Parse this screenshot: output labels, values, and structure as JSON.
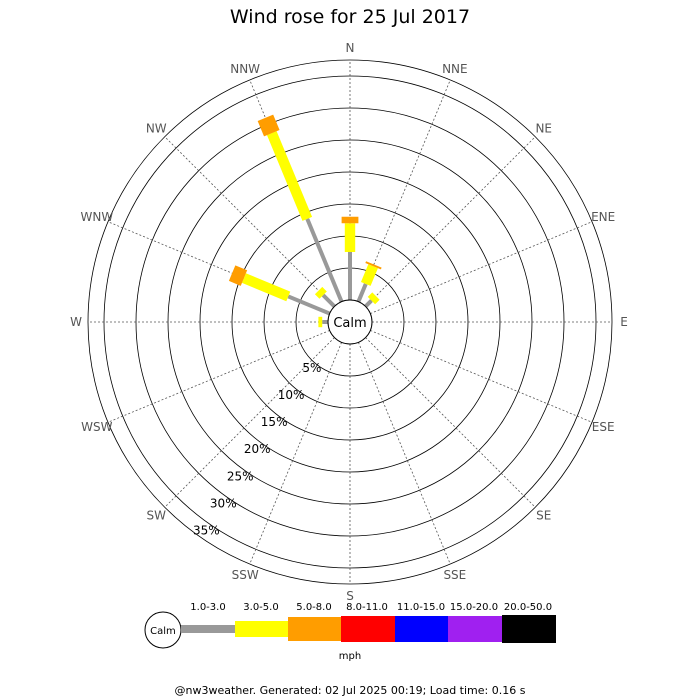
{
  "chart_data": {
    "type": "wind-rose",
    "title": "Wind rose for 25 Jul 2017",
    "directions": [
      "N",
      "NNE",
      "NE",
      "ENE",
      "E",
      "ESE",
      "SE",
      "SSE",
      "S",
      "SSW",
      "SW",
      "WSW",
      "W",
      "WNW",
      "NW",
      "NNW"
    ],
    "radial_ticks": [
      5,
      10,
      15,
      20,
      25,
      30,
      35
    ],
    "radial_tick_format": "{v}%",
    "rmax": 37.5,
    "calm_label": "Calm",
    "speed_bins": [
      {
        "label": "1.0-3.0",
        "color": "#999999"
      },
      {
        "label": "3.0-5.0",
        "color": "#ffff00"
      },
      {
        "label": "5.0-8.0",
        "color": "#ff9d00"
      },
      {
        "label": "8.0-11.0",
        "color": "#ff0000"
      },
      {
        "label": "11.0-15.0",
        "color": "#0000ff"
      },
      {
        "label": "15.0-20.0",
        "color": "#a020f0"
      },
      {
        "label": "20.0-50.0",
        "color": "#000000"
      }
    ],
    "unit": "mph",
    "series": [
      {
        "direction": "N",
        "values": [
          7.5,
          4.5,
          1.0,
          0,
          0,
          0,
          0
        ]
      },
      {
        "direction": "NNE",
        "values": [
          3.0,
          3.0,
          0.3,
          0,
          0,
          0,
          0
        ]
      },
      {
        "direction": "NE",
        "values": [
          1.3,
          1.0,
          0,
          0,
          0,
          0,
          0
        ]
      },
      {
        "direction": "W",
        "values": [
          0.9,
          0.6,
          0,
          0,
          0,
          0,
          0
        ]
      },
      {
        "direction": "WNW",
        "values": [
          7.0,
          7.5,
          2.0,
          0,
          0,
          0,
          0
        ]
      },
      {
        "direction": "NW",
        "values": [
          2.5,
          1.0,
          0,
          0,
          0,
          0,
          0
        ]
      },
      {
        "direction": "NNW",
        "values": [
          14.0,
          14.5,
          2.6,
          0,
          0,
          0,
          0
        ]
      }
    ]
  },
  "footer": "@nw3weather. Generated: 02 Jul 2025 00:19; Load time: 0.16 s"
}
